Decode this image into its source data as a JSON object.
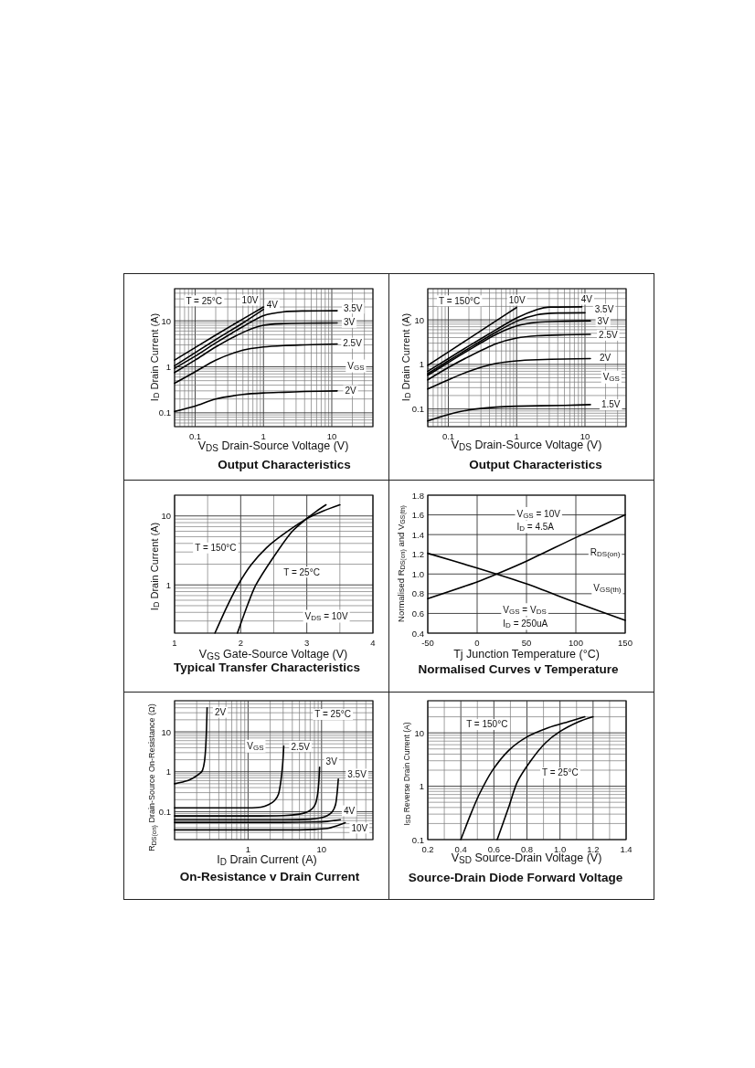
{
  "chart_data": [
    {
      "type": "line",
      "title": "Output Characteristics",
      "xlabel": "V$_{DS}$ Drain-Source Voltage (V)",
      "ylabel": "I$_{D}$ Drain Current (A)",
      "log": "xy",
      "grid": true,
      "marker": "none",
      "xlim": [
        0.05,
        40
      ],
      "xticks": [
        {
          "value": 0.05,
          "label": null
        },
        {
          "value": 0.06,
          "label": null
        },
        {
          "value": 0.07,
          "label": null
        },
        {
          "value": 0.08,
          "label": null
        },
        {
          "value": 0.09,
          "label": null
        },
        0.1,
        {
          "value": 0.2,
          "label": null
        },
        {
          "value": 0.3,
          "label": null
        },
        {
          "value": 0.4,
          "label": null
        },
        {
          "value": 0.5,
          "label": null
        },
        {
          "value": 0.6,
          "label": null
        },
        {
          "value": 0.7,
          "label": null
        },
        {
          "value": 0.8,
          "label": null
        },
        {
          "value": 0.9,
          "label": null
        },
        1,
        {
          "value": 2,
          "label": null
        },
        {
          "value": 3,
          "label": null
        },
        {
          "value": 4,
          "label": null
        },
        {
          "value": 5,
          "label": null
        },
        {
          "value": 6,
          "label": null
        },
        {
          "value": 7,
          "label": null
        },
        {
          "value": 8,
          "label": null
        },
        {
          "value": 9,
          "label": null
        },
        10,
        {
          "value": 20,
          "label": null
        },
        {
          "value": 30,
          "label": null
        },
        {
          "value": 40,
          "label": null
        }
      ],
      "ylim": [
        0.05,
        50
      ],
      "yticks": [
        {
          "value": 0.05,
          "label": null
        },
        {
          "value": 0.06,
          "label": null
        },
        {
          "value": 0.07,
          "label": null
        },
        {
          "value": 0.08,
          "label": null
        },
        {
          "value": 0.09,
          "label": null
        },
        0.1,
        {
          "value": 0.2,
          "label": null
        },
        {
          "value": 0.3,
          "label": null
        },
        {
          "value": 0.4,
          "label": null
        },
        {
          "value": 0.5,
          "label": null
        },
        {
          "value": 0.6,
          "label": null
        },
        {
          "value": 0.7,
          "label": null
        },
        {
          "value": 0.8,
          "label": null
        },
        {
          "value": 0.9,
          "label": null
        },
        1,
        {
          "value": 2,
          "label": null
        },
        {
          "value": 3,
          "label": null
        },
        {
          "value": 4,
          "label": null
        },
        {
          "value": 5,
          "label": null
        },
        {
          "value": 6,
          "label": null
        },
        {
          "value": 7,
          "label": null
        },
        {
          "value": 8,
          "label": null
        },
        {
          "value": 9,
          "label": null
        },
        10,
        {
          "value": 20,
          "label": null
        },
        {
          "value": 30,
          "label": null
        },
        {
          "value": 40,
          "label": null
        },
        {
          "value": 50,
          "label": null
        }
      ],
      "annotations": [
        "T = 25°C",
        "V$_{GS}$"
      ],
      "series": [
        {
          "name": "10V",
          "color": "#000000",
          "x": [
            0.05,
            0.2,
            0.5,
            1
          ],
          "values": [
            1.4,
            4.9,
            11,
            20
          ]
        },
        {
          "name": "4V",
          "color": "#000000",
          "x": [
            0.05,
            0.2,
            0.5,
            1
          ],
          "values": [
            1.05,
            3.9,
            9,
            17.8
          ]
        },
        {
          "name": "3.5V",
          "color": "#000000",
          "x": [
            0.05,
            0.1,
            0.2,
            0.5,
            1,
            2,
            4,
            12
          ],
          "values": [
            0.93,
            1.7,
            3.3,
            7.5,
            13,
            15.8,
            16.4,
            16.6
          ]
        },
        {
          "name": "3V",
          "color": "#000000",
          "x": [
            0.05,
            0.1,
            0.2,
            0.5,
            1,
            2,
            4,
            12
          ],
          "values": [
            0.75,
            1.4,
            2.7,
            5.6,
            8,
            8.7,
            8.9,
            9
          ]
        },
        {
          "name": "2.5V",
          "color": "#000000",
          "x": [
            0.05,
            0.1,
            0.2,
            0.5,
            1,
            2,
            4,
            12
          ],
          "values": [
            0.44,
            0.78,
            1.4,
            2.3,
            2.7,
            2.9,
            3,
            3.15
          ]
        },
        {
          "name": "2V",
          "color": "#000000",
          "x": [
            0.05,
            0.1,
            0.2,
            0.5,
            1,
            2,
            4,
            12
          ],
          "values": [
            0.107,
            0.14,
            0.2,
            0.25,
            0.27,
            0.28,
            0.29,
            0.3
          ]
        }
      ]
    },
    {
      "type": "line",
      "title": "Output Characteristics",
      "xlabel": "V$_{DS}$ Drain-Source Voltage (V)",
      "ylabel": "I$_{D}$ Drain Current (A)",
      "log": "xy",
      "grid": true,
      "marker": "none",
      "xlim": [
        0.05,
        40
      ],
      "xticks": [
        {
          "value": 0.05,
          "label": null
        },
        {
          "value": 0.06,
          "label": null
        },
        {
          "value": 0.07,
          "label": null
        },
        {
          "value": 0.08,
          "label": null
        },
        {
          "value": 0.09,
          "label": null
        },
        0.1,
        {
          "value": 0.2,
          "label": null
        },
        {
          "value": 0.3,
          "label": null
        },
        {
          "value": 0.4,
          "label": null
        },
        {
          "value": 0.5,
          "label": null
        },
        {
          "value": 0.6,
          "label": null
        },
        {
          "value": 0.7,
          "label": null
        },
        {
          "value": 0.8,
          "label": null
        },
        {
          "value": 0.9,
          "label": null
        },
        1,
        {
          "value": 2,
          "label": null
        },
        {
          "value": 3,
          "label": null
        },
        {
          "value": 4,
          "label": null
        },
        {
          "value": 5,
          "label": null
        },
        {
          "value": 6,
          "label": null
        },
        {
          "value": 7,
          "label": null
        },
        {
          "value": 8,
          "label": null
        },
        {
          "value": 9,
          "label": null
        },
        10,
        {
          "value": 20,
          "label": null
        },
        {
          "value": 30,
          "label": null
        },
        {
          "value": 40,
          "label": null
        }
      ],
      "ylim": [
        0.04,
        50
      ],
      "yticks": [
        {
          "value": 0.04,
          "label": null
        },
        {
          "value": 0.05,
          "label": null
        },
        {
          "value": 0.06,
          "label": null
        },
        {
          "value": 0.07,
          "label": null
        },
        {
          "value": 0.08,
          "label": null
        },
        {
          "value": 0.09,
          "label": null
        },
        0.1,
        {
          "value": 0.2,
          "label": null
        },
        {
          "value": 0.3,
          "label": null
        },
        {
          "value": 0.4,
          "label": null
        },
        {
          "value": 0.5,
          "label": null
        },
        {
          "value": 0.6,
          "label": null
        },
        {
          "value": 0.7,
          "label": null
        },
        {
          "value": 0.8,
          "label": null
        },
        {
          "value": 0.9,
          "label": null
        },
        1,
        {
          "value": 2,
          "label": null
        },
        {
          "value": 3,
          "label": null
        },
        {
          "value": 4,
          "label": null
        },
        {
          "value": 5,
          "label": null
        },
        {
          "value": 6,
          "label": null
        },
        {
          "value": 7,
          "label": null
        },
        {
          "value": 8,
          "label": null
        },
        {
          "value": 9,
          "label": null
        },
        10,
        {
          "value": 20,
          "label": null
        },
        {
          "value": 30,
          "label": null
        },
        {
          "value": 40,
          "label": null
        },
        {
          "value": 50,
          "label": null
        }
      ],
      "annotations": [
        "T = 150°C",
        "V$_{GS}$"
      ],
      "series": [
        {
          "name": "10V",
          "color": "#000000",
          "x": [
            0.05,
            0.2,
            0.5,
            1
          ],
          "values": [
            0.95,
            3.8,
            9.5,
            19
          ]
        },
        {
          "name": "4V",
          "color": "#000000",
          "x": [
            0.05,
            0.1,
            0.2,
            0.5,
            1,
            2,
            3,
            9
          ],
          "values": [
            0.7,
            1.35,
            2.6,
            6,
            11,
            17,
            19.3,
            19.6
          ]
        },
        {
          "name": "3.5V",
          "color": "#000000",
          "x": [
            0.05,
            0.1,
            0.2,
            0.5,
            1,
            2,
            4,
            10
          ],
          "values": [
            0.62,
            1.2,
            2.3,
            5.3,
            9.3,
            13,
            14.2,
            14.4
          ]
        },
        {
          "name": "3V",
          "color": "#000000",
          "x": [
            0.05,
            0.1,
            0.2,
            0.5,
            1,
            2,
            5,
            12
          ],
          "values": [
            0.57,
            1.1,
            2.1,
            4.7,
            7.3,
            8.8,
            9.3,
            9.5
          ]
        },
        {
          "name": "2.5V",
          "color": "#000000",
          "x": [
            0.05,
            0.1,
            0.2,
            0.5,
            1,
            2,
            5,
            12
          ],
          "values": [
            0.45,
            0.85,
            1.5,
            2.9,
            3.9,
            4.4,
            4.6,
            4.7
          ]
        },
        {
          "name": "2V",
          "color": "#000000",
          "x": [
            0.05,
            0.1,
            0.2,
            0.5,
            1,
            2,
            5,
            12
          ],
          "values": [
            0.28,
            0.45,
            0.7,
            1.05,
            1.2,
            1.27,
            1.32,
            1.35
          ]
        },
        {
          "name": "1.5V",
          "color": "#000000",
          "x": [
            0.05,
            0.1,
            0.2,
            0.5,
            1,
            5,
            12
          ],
          "values": [
            0.054,
            0.075,
            0.095,
            0.11,
            0.115,
            0.12,
            0.125
          ]
        }
      ]
    },
    {
      "type": "line",
      "title": "Typical Transfer Characteristics",
      "xlabel": "V$_{GS}$ Gate-Source Voltage (V)",
      "ylabel": "I$_{D}$ Drain Current (A)",
      "log": "y",
      "grid": true,
      "marker": "none",
      "xlim": [
        1,
        4
      ],
      "xticks": [
        1,
        {
          "value": 1.5,
          "label": null
        },
        2,
        {
          "value": 2.5,
          "label": null
        },
        3,
        {
          "value": 3.5,
          "label": null
        },
        4
      ],
      "ylim": [
        0.2,
        20
      ],
      "yticks": [
        {
          "value": 0.2,
          "label": null
        },
        {
          "value": 0.3,
          "label": null
        },
        {
          "value": 0.4,
          "label": null
        },
        {
          "value": 0.5,
          "label": null
        },
        {
          "value": 0.6,
          "label": null
        },
        {
          "value": 0.7,
          "label": null
        },
        {
          "value": 0.8,
          "label": null
        },
        {
          "value": 0.9,
          "label": null
        },
        1,
        {
          "value": 2,
          "label": null
        },
        {
          "value": 3,
          "label": null
        },
        {
          "value": 4,
          "label": null
        },
        {
          "value": 5,
          "label": null
        },
        {
          "value": 6,
          "label": null
        },
        {
          "value": 7,
          "label": null
        },
        {
          "value": 8,
          "label": null
        },
        {
          "value": 9,
          "label": null
        },
        10,
        {
          "value": 20,
          "label": null
        }
      ],
      "annotations": [
        "V$_{DS}$ = 10V"
      ],
      "series": [
        {
          "name": "T = 150°C",
          "color": "#000000",
          "x": [
            1.61,
            1.79,
            1.96,
            2.16,
            2.39,
            2.62,
            2.99,
            3.25,
            3.5
          ],
          "values": [
            0.2,
            0.48,
            1,
            1.97,
            3.45,
            5.2,
            9,
            11.8,
            14.5
          ]
        },
        {
          "name": "T = 25°C",
          "color": "#000000",
          "x": [
            1.95,
            2.11,
            2.23,
            2.48,
            2.76,
            2.99,
            3.15,
            3.29
          ],
          "values": [
            0.2,
            0.53,
            1,
            2.4,
            5.7,
            9,
            11.8,
            14.5
          ]
        }
      ]
    },
    {
      "type": "line",
      "title": "Normalised Curves v Temperature",
      "xlabel": "Tj Junction Temperature (°C)",
      "ylabel": "Normalised R$_{DS(on)}$ and V$_{GS(th)}$",
      "grid": true,
      "marker": "none",
      "xlim": [
        -50,
        150
      ],
      "xticks": [
        -50,
        0,
        50,
        100,
        150
      ],
      "ylim": [
        0.4,
        1.8
      ],
      "yticks": [
        0.4,
        0.6,
        0.8,
        {
          "value": 1,
          "label": "1.0"
        },
        1.2,
        1.4,
        1.6,
        1.8
      ],
      "annotations": [
        "V$_{GS}$ = 10V",
        "I$_{D}$ = 4.5A",
        "V$_{GS}$ = V$_{DS}$",
        "I$_{D}$ = 250uA"
      ],
      "series": [
        {
          "name": "R$_{DS(on)}$",
          "color": "#000000",
          "x": [
            -50,
            0,
            20,
            50,
            100,
            150
          ],
          "values": [
            0.75,
            0.92,
            1.0,
            1.13,
            1.37,
            1.6
          ]
        },
        {
          "name": "V$_{GS(th)}$",
          "color": "#000000",
          "x": [
            -50,
            0,
            50,
            100,
            150
          ],
          "values": [
            1.21,
            1.06,
            0.9,
            0.71,
            0.53
          ]
        }
      ]
    },
    {
      "type": "line",
      "title": "On-Resistance v Drain Current",
      "xlabel": "I$_{D}$ Drain Current (A)",
      "ylabel": "R$_{DS(on)}$ Drain-Source On-Resistance (Ω)",
      "log": "xy",
      "grid": true,
      "marker": "none",
      "xlim": [
        0.1,
        50
      ],
      "xticks": [
        {
          "value": 0.1,
          "label": null
        },
        {
          "value": 0.2,
          "label": null
        },
        {
          "value": 0.3,
          "label": null
        },
        {
          "value": 0.4,
          "label": null
        },
        {
          "value": 0.5,
          "label": null
        },
        {
          "value": 0.6,
          "label": null
        },
        {
          "value": 0.7,
          "label": null
        },
        {
          "value": 0.8,
          "label": null
        },
        {
          "value": 0.9,
          "label": null
        },
        1,
        {
          "value": 2,
          "label": null
        },
        {
          "value": 3,
          "label": null
        },
        {
          "value": 4,
          "label": null
        },
        {
          "value": 5,
          "label": null
        },
        {
          "value": 6,
          "label": null
        },
        {
          "value": 7,
          "label": null
        },
        {
          "value": 8,
          "label": null
        },
        {
          "value": 9,
          "label": null
        },
        10,
        {
          "value": 20,
          "label": null
        },
        {
          "value": 30,
          "label": null
        },
        {
          "value": 40,
          "label": null
        },
        {
          "value": 50,
          "label": null
        }
      ],
      "ylim": [
        0.02,
        60
      ],
      "yticks": [
        {
          "value": 0.02,
          "label": null
        },
        {
          "value": 0.03,
          "label": null
        },
        {
          "value": 0.04,
          "label": null
        },
        {
          "value": 0.05,
          "label": null
        },
        {
          "value": 0.06,
          "label": null
        },
        {
          "value": 0.07,
          "label": null
        },
        {
          "value": 0.08,
          "label": null
        },
        {
          "value": 0.09,
          "label": null
        },
        0.1,
        {
          "value": 0.2,
          "label": null
        },
        {
          "value": 0.3,
          "label": null
        },
        {
          "value": 0.4,
          "label": null
        },
        {
          "value": 0.5,
          "label": null
        },
        {
          "value": 0.6,
          "label": null
        },
        {
          "value": 0.7,
          "label": null
        },
        {
          "value": 0.8,
          "label": null
        },
        {
          "value": 0.9,
          "label": null
        },
        1,
        {
          "value": 2,
          "label": null
        },
        {
          "value": 3,
          "label": null
        },
        {
          "value": 4,
          "label": null
        },
        {
          "value": 5,
          "label": null
        },
        {
          "value": 6,
          "label": null
        },
        {
          "value": 7,
          "label": null
        },
        {
          "value": 8,
          "label": null
        },
        {
          "value": 9,
          "label": null
        },
        10,
        {
          "value": 20,
          "label": null
        },
        {
          "value": 30,
          "label": null
        },
        {
          "value": 40,
          "label": null
        },
        {
          "value": 50,
          "label": null
        },
        {
          "value": 60,
          "label": null
        }
      ],
      "annotations": [
        "T = 25°C",
        "V$_{GS}$"
      ],
      "series": [
        {
          "name": "2V",
          "color": "#000000",
          "x": [
            0.1,
            0.15,
            0.18,
            0.22,
            0.24,
            0.255,
            0.265,
            0.272,
            0.277
          ],
          "values": [
            0.5,
            0.6,
            0.7,
            0.9,
            1.09,
            1.8,
            4,
            12,
            40
          ]
        },
        {
          "name": "2.5V",
          "color": "#000000",
          "x": [
            0.1,
            0.5,
            1,
            1.5,
            1.9,
            2.3,
            2.6,
            2.8,
            2.95,
            3.06
          ],
          "values": [
            0.125,
            0.125,
            0.125,
            0.13,
            0.15,
            0.19,
            0.28,
            0.6,
            1.5,
            4.4
          ]
        },
        {
          "name": "3V",
          "color": "#000000",
          "x": [
            0.1,
            1,
            3,
            5,
            6.5,
            7.5,
            8.3,
            8.9,
            9.2,
            9.4
          ],
          "values": [
            0.078,
            0.078,
            0.08,
            0.087,
            0.1,
            0.12,
            0.16,
            0.3,
            0.6,
            1.3
          ]
        },
        {
          "name": "3.5V",
          "color": "#000000",
          "x": [
            0.1,
            3,
            7,
            10,
            12,
            14,
            15.5,
            16.3,
            16.9
          ],
          "values": [
            0.063,
            0.063,
            0.065,
            0.071,
            0.08,
            0.1,
            0.15,
            0.3,
            0.65
          ]
        },
        {
          "name": "4V",
          "color": "#000000",
          "x": [
            0.1,
            3,
            8,
            12,
            15,
            18
          ],
          "values": [
            0.054,
            0.054,
            0.055,
            0.057,
            0.06,
            0.063
          ]
        },
        {
          "name": "10V",
          "color": "#000000",
          "x": [
            0.1,
            3,
            8,
            12,
            16,
            21
          ],
          "values": [
            0.035,
            0.035,
            0.036,
            0.038,
            0.044,
            0.053
          ]
        }
      ]
    },
    {
      "type": "line",
      "title": "Source-Drain Diode Forward Voltage",
      "xlabel": "V$_{SD}$ Source-Drain Voltage (V)",
      "ylabel": "I$_{SD}$ Reverse Drain Current (A)",
      "log": "y",
      "grid": true,
      "marker": "none",
      "xlim": [
        0.2,
        1.4
      ],
      "xticks": [
        0.2,
        {
          "value": 0.3,
          "label": null
        },
        0.4,
        {
          "value": 0.5,
          "label": null
        },
        0.6,
        {
          "value": 0.7,
          "label": null
        },
        0.8,
        {
          "value": 0.9,
          "label": null
        },
        {
          "value": 1,
          "label": "1.0"
        },
        {
          "value": 1.1,
          "label": null
        },
        1.2,
        {
          "value": 1.3,
          "label": null
        },
        1.4
      ],
      "ylim": [
        0.1,
        40
      ],
      "yticks": [
        0.1,
        {
          "value": 0.2,
          "label": null
        },
        {
          "value": 0.3,
          "label": null
        },
        {
          "value": 0.4,
          "label": null
        },
        {
          "value": 0.5,
          "label": null
        },
        {
          "value": 0.6,
          "label": null
        },
        {
          "value": 0.7,
          "label": null
        },
        {
          "value": 0.8,
          "label": null
        },
        {
          "value": 0.9,
          "label": null
        },
        1,
        {
          "value": 2,
          "label": null
        },
        {
          "value": 3,
          "label": null
        },
        {
          "value": 4,
          "label": null
        },
        {
          "value": 5,
          "label": null
        },
        {
          "value": 6,
          "label": null
        },
        {
          "value": 7,
          "label": null
        },
        {
          "value": 8,
          "label": null
        },
        {
          "value": 9,
          "label": null
        },
        10,
        {
          "value": 20,
          "label": null
        },
        {
          "value": 30,
          "label": null
        },
        {
          "value": 40,
          "label": null
        }
      ],
      "series": [
        {
          "name": "T = 150°C",
          "color": "#000000",
          "x": [
            0.4,
            0.46,
            0.51,
            0.59,
            0.69,
            0.8,
            0.93,
            1.05,
            1.15
          ],
          "values": [
            0.1,
            0.3,
            0.69,
            1.95,
            4.7,
            8.4,
            12.5,
            16.2,
            20
          ]
        },
        {
          "name": "T = 25°C",
          "color": "#000000",
          "x": [
            0.62,
            0.69,
            0.74,
            0.82,
            0.91,
            1.0,
            1.11,
            1.2
          ],
          "values": [
            0.1,
            0.41,
            1.17,
            2.9,
            6.4,
            10.6,
            16,
            20
          ]
        }
      ]
    }
  ]
}
